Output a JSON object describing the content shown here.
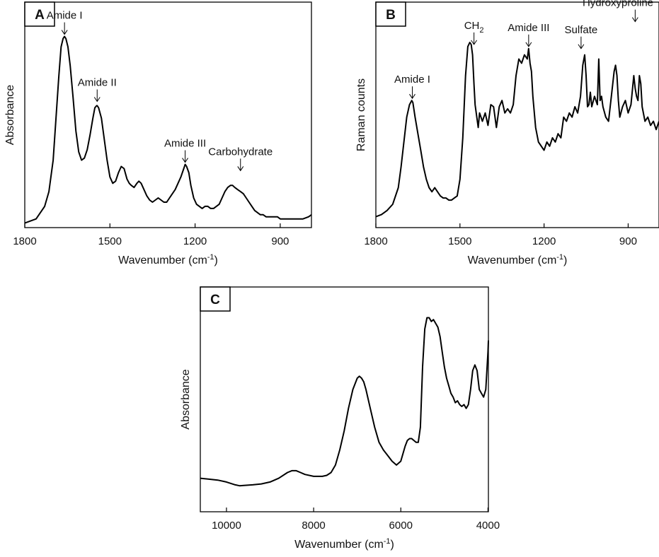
{
  "chart_data": [
    {
      "panel": "A",
      "type": "line",
      "xlabel": "Wavenumber (cm",
      "xlabel_sup": "-1",
      "xlabel_tail": ")",
      "ylabel": "Absorbance",
      "xlim": [
        1800,
        790
      ],
      "ylim": [
        0,
        1
      ],
      "x_reversed": true,
      "yticks_shown": false,
      "xticks": [
        1800,
        1500,
        1200,
        900
      ],
      "annotations": [
        {
          "text": "Amide I",
          "x": 1660,
          "y": 0.89
        },
        {
          "text": "Amide II",
          "x": 1545,
          "y": 0.57
        },
        {
          "text": "Amide III",
          "x": 1235,
          "y": 0.28
        },
        {
          "text": "Carbohydrate",
          "x": 1040,
          "y": 0.24
        }
      ],
      "series": [
        {
          "x": [
            1800,
            1760,
            1730,
            1715,
            1700,
            1690,
            1680,
            1672,
            1665,
            1660,
            1655,
            1648,
            1640,
            1630,
            1620,
            1610,
            1600,
            1590,
            1580,
            1570,
            1560,
            1553,
            1547,
            1545,
            1540,
            1530,
            1520,
            1510,
            1500,
            1490,
            1480,
            1470,
            1460,
            1450,
            1440,
            1432,
            1425,
            1415,
            1405,
            1398,
            1390,
            1380,
            1370,
            1360,
            1350,
            1340,
            1330,
            1320,
            1310,
            1300,
            1290,
            1280,
            1270,
            1260,
            1250,
            1240,
            1235,
            1230,
            1222,
            1215,
            1205,
            1195,
            1185,
            1175,
            1165,
            1155,
            1145,
            1135,
            1125,
            1115,
            1105,
            1095,
            1085,
            1075,
            1068,
            1060,
            1050,
            1040,
            1030,
            1020,
            1010,
            1000,
            990,
            980,
            970,
            960,
            950,
            940,
            930,
            920,
            910,
            900,
            880,
            860,
            840,
            820,
            800,
            790
          ],
          "y": [
            0.0,
            0.02,
            0.08,
            0.15,
            0.3,
            0.5,
            0.7,
            0.84,
            0.88,
            0.89,
            0.88,
            0.84,
            0.75,
            0.6,
            0.44,
            0.34,
            0.3,
            0.31,
            0.35,
            0.42,
            0.5,
            0.55,
            0.56,
            0.56,
            0.55,
            0.5,
            0.4,
            0.3,
            0.22,
            0.19,
            0.2,
            0.24,
            0.27,
            0.26,
            0.21,
            0.19,
            0.18,
            0.17,
            0.19,
            0.2,
            0.19,
            0.16,
            0.13,
            0.11,
            0.1,
            0.11,
            0.12,
            0.11,
            0.1,
            0.1,
            0.12,
            0.14,
            0.16,
            0.19,
            0.22,
            0.26,
            0.28,
            0.27,
            0.24,
            0.18,
            0.12,
            0.09,
            0.08,
            0.07,
            0.08,
            0.08,
            0.07,
            0.07,
            0.08,
            0.09,
            0.12,
            0.15,
            0.17,
            0.18,
            0.18,
            0.17,
            0.16,
            0.15,
            0.14,
            0.12,
            0.1,
            0.08,
            0.06,
            0.05,
            0.04,
            0.04,
            0.03,
            0.03,
            0.03,
            0.03,
            0.03,
            0.02,
            0.02,
            0.02,
            0.02,
            0.02,
            0.03,
            0.04
          ]
        }
      ]
    },
    {
      "panel": "B",
      "type": "line",
      "xlabel": "Wavenumber (cm",
      "xlabel_sup": "-1",
      "xlabel_tail": ")",
      "ylabel": "Raman counts",
      "xlim": [
        1800,
        790
      ],
      "ylim": [
        0,
        1
      ],
      "x_reversed": true,
      "yticks_shown": false,
      "xticks": [
        1800,
        1500,
        1200,
        900
      ],
      "annotations": [
        {
          "text": "Amide I",
          "x": 1670,
          "y": 0.58
        },
        {
          "text": "CH",
          "sub": "2",
          "x": 1450,
          "y": 0.84
        },
        {
          "text": "Amide III",
          "x": 1255,
          "y": 0.83
        },
        {
          "text": "Sulfate",
          "x": 1068,
          "y": 0.82
        },
        {
          "text": "Hydroxyproline",
          "x": 875,
          "y": 0.95
        },
        {
          "text": "Proline",
          "x": 875,
          "y": 1.0
        }
      ],
      "series": [
        {
          "x": [
            1800,
            1780,
            1760,
            1740,
            1720,
            1710,
            1700,
            1690,
            1680,
            1672,
            1668,
            1660,
            1650,
            1640,
            1630,
            1620,
            1610,
            1600,
            1590,
            1580,
            1570,
            1560,
            1550,
            1540,
            1530,
            1520,
            1510,
            1500,
            1490,
            1480,
            1472,
            1465,
            1460,
            1455,
            1450,
            1446,
            1440,
            1435,
            1430,
            1420,
            1410,
            1400,
            1390,
            1380,
            1370,
            1360,
            1350,
            1340,
            1330,
            1320,
            1310,
            1300,
            1290,
            1280,
            1270,
            1260,
            1255,
            1250,
            1245,
            1240,
            1230,
            1220,
            1210,
            1200,
            1190,
            1180,
            1170,
            1160,
            1150,
            1140,
            1130,
            1120,
            1110,
            1100,
            1090,
            1080,
            1070,
            1062,
            1055,
            1050,
            1045,
            1040,
            1035,
            1030,
            1020,
            1010,
            1005,
            1000,
            995,
            990,
            980,
            970,
            960,
            950,
            945,
            940,
            935,
            930,
            920,
            910,
            900,
            890,
            880,
            875,
            870,
            865,
            860,
            855,
            850,
            840,
            830,
            820,
            810,
            800,
            790
          ],
          "y": [
            0.02,
            0.03,
            0.05,
            0.08,
            0.16,
            0.26,
            0.38,
            0.5,
            0.56,
            0.58,
            0.57,
            0.5,
            0.42,
            0.34,
            0.26,
            0.2,
            0.16,
            0.14,
            0.16,
            0.14,
            0.12,
            0.11,
            0.11,
            0.1,
            0.1,
            0.11,
            0.12,
            0.2,
            0.4,
            0.7,
            0.84,
            0.86,
            0.85,
            0.8,
            0.66,
            0.56,
            0.5,
            0.45,
            0.52,
            0.48,
            0.52,
            0.46,
            0.56,
            0.55,
            0.45,
            0.55,
            0.58,
            0.52,
            0.54,
            0.52,
            0.56,
            0.7,
            0.78,
            0.76,
            0.8,
            0.78,
            0.83,
            0.76,
            0.72,
            0.6,
            0.45,
            0.38,
            0.36,
            0.34,
            0.38,
            0.36,
            0.4,
            0.38,
            0.42,
            0.4,
            0.5,
            0.48,
            0.52,
            0.5,
            0.55,
            0.52,
            0.6,
            0.75,
            0.8,
            0.7,
            0.55,
            0.56,
            0.62,
            0.55,
            0.6,
            0.56,
            0.78,
            0.58,
            0.6,
            0.55,
            0.5,
            0.48,
            0.6,
            0.72,
            0.75,
            0.7,
            0.58,
            0.5,
            0.55,
            0.58,
            0.52,
            0.56,
            0.7,
            0.64,
            0.6,
            0.58,
            0.7,
            0.66,
            0.55,
            0.48,
            0.5,
            0.46,
            0.48,
            0.44,
            0.48
          ]
        }
      ]
    },
    {
      "panel": "C",
      "type": "line",
      "xlabel": "Wavenumber (cm",
      "xlabel_sup": "-1",
      "xlabel_tail": ")",
      "ylabel": "Absorbance",
      "xlim": [
        10600,
        3990
      ],
      "ylim": [
        0,
        1
      ],
      "x_reversed": true,
      "yticks_shown": false,
      "xticks": [
        10000,
        8000,
        6000,
        4000
      ],
      "annotations": [],
      "series": [
        {
          "x": [
            10600,
            10400,
            10200,
            10000,
            9800,
            9700,
            9600,
            9400,
            9200,
            9000,
            8800,
            8600,
            8500,
            8400,
            8300,
            8200,
            8000,
            7800,
            7700,
            7600,
            7500,
            7400,
            7300,
            7200,
            7100,
            7000,
            6950,
            6900,
            6850,
            6800,
            6700,
            6600,
            6500,
            6400,
            6300,
            6200,
            6100,
            6000,
            5950,
            5900,
            5850,
            5800,
            5750,
            5700,
            5650,
            5600,
            5550,
            5500,
            5450,
            5400,
            5350,
            5300,
            5250,
            5200,
            5150,
            5100,
            5050,
            5000,
            4950,
            4900,
            4850,
            4800,
            4750,
            4700,
            4650,
            4600,
            4550,
            4500,
            4450,
            4400,
            4350,
            4300,
            4250,
            4200,
            4150,
            4100,
            4050,
            4000,
            3990
          ],
          "y": [
            0.13,
            0.125,
            0.12,
            0.11,
            0.095,
            0.09,
            0.092,
            0.095,
            0.1,
            0.11,
            0.13,
            0.16,
            0.17,
            0.17,
            0.16,
            0.15,
            0.14,
            0.14,
            0.145,
            0.16,
            0.2,
            0.28,
            0.38,
            0.5,
            0.6,
            0.66,
            0.67,
            0.66,
            0.64,
            0.6,
            0.5,
            0.4,
            0.32,
            0.28,
            0.25,
            0.22,
            0.2,
            0.22,
            0.26,
            0.3,
            0.33,
            0.34,
            0.34,
            0.33,
            0.32,
            0.32,
            0.4,
            0.72,
            0.92,
            0.98,
            0.98,
            0.96,
            0.97,
            0.95,
            0.93,
            0.88,
            0.8,
            0.72,
            0.66,
            0.62,
            0.58,
            0.56,
            0.53,
            0.54,
            0.52,
            0.51,
            0.52,
            0.5,
            0.52,
            0.6,
            0.7,
            0.73,
            0.7,
            0.6,
            0.58,
            0.56,
            0.6,
            0.8,
            0.86
          ]
        }
      ]
    }
  ]
}
